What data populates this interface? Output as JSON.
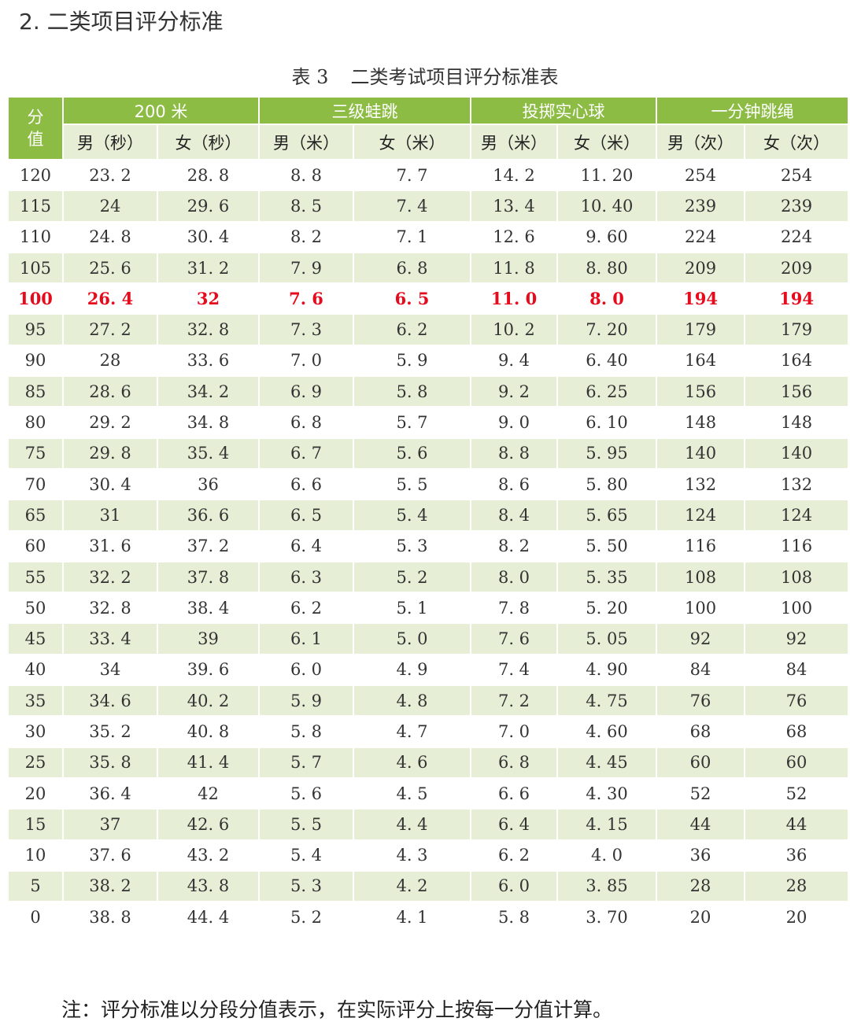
{
  "section_heading": "2. 二类项目评分标准",
  "caption": {
    "label": "表 3",
    "title": "二类考试项目评分标准表"
  },
  "table": {
    "score_header_line1": "分",
    "score_header_line2": "值",
    "groups": [
      "200 米",
      "三级蛙跳",
      "投掷实心球",
      "一分钟跳绳"
    ],
    "sub_headers": [
      "男（秒）",
      "女（秒）",
      "男（米）",
      "女（米）",
      "男（米）",
      "女（米）",
      "男（次）",
      "女（次）"
    ],
    "highlight_score": "100",
    "highlight_color": "#e60b1c",
    "header_color": "#8cbc43",
    "stripe_color": "#e6efd6",
    "rows": [
      [
        "120",
        "23. 2",
        "28. 8",
        "8. 8",
        "7. 7",
        "14. 2",
        "11. 20",
        "254",
        "254"
      ],
      [
        "115",
        "24",
        "29. 6",
        "8. 5",
        "7. 4",
        "13. 4",
        "10. 40",
        "239",
        "239"
      ],
      [
        "110",
        "24. 8",
        "30. 4",
        "8. 2",
        "7. 1",
        "12. 6",
        "9. 60",
        "224",
        "224"
      ],
      [
        "105",
        "25. 6",
        "31. 2",
        "7. 9",
        "6. 8",
        "11. 8",
        "8. 80",
        "209",
        "209"
      ],
      [
        "100",
        "26. 4",
        "32",
        "7. 6",
        "6. 5",
        "11. 0",
        "8. 0",
        "194",
        "194"
      ],
      [
        "95",
        "27. 2",
        "32. 8",
        "7. 3",
        "6. 2",
        "10. 2",
        "7. 20",
        "179",
        "179"
      ],
      [
        "90",
        "28",
        "33. 6",
        "7. 0",
        "5. 9",
        "9. 4",
        "6. 40",
        "164",
        "164"
      ],
      [
        "85",
        "28. 6",
        "34. 2",
        "6. 9",
        "5. 8",
        "9. 2",
        "6. 25",
        "156",
        "156"
      ],
      [
        "80",
        "29. 2",
        "34. 8",
        "6. 8",
        "5. 7",
        "9. 0",
        "6. 10",
        "148",
        "148"
      ],
      [
        "75",
        "29. 8",
        "35. 4",
        "6. 7",
        "5. 6",
        "8. 8",
        "5. 95",
        "140",
        "140"
      ],
      [
        "70",
        "30. 4",
        "36",
        "6. 6",
        "5. 5",
        "8. 6",
        "5. 80",
        "132",
        "132"
      ],
      [
        "65",
        "31",
        "36. 6",
        "6. 5",
        "5. 4",
        "8. 4",
        "5. 65",
        "124",
        "124"
      ],
      [
        "60",
        "31. 6",
        "37. 2",
        "6. 4",
        "5. 3",
        "8. 2",
        "5. 50",
        "116",
        "116"
      ],
      [
        "55",
        "32. 2",
        "37. 8",
        "6. 3",
        "5. 2",
        "8. 0",
        "5. 35",
        "108",
        "108"
      ],
      [
        "50",
        "32. 8",
        "38. 4",
        "6. 2",
        "5. 1",
        "7. 8",
        "5. 20",
        "100",
        "100"
      ],
      [
        "45",
        "33. 4",
        "39",
        "6. 1",
        "5. 0",
        "7. 6",
        "5. 05",
        "92",
        "92"
      ],
      [
        "40",
        "34",
        "39. 6",
        "6. 0",
        "4. 9",
        "7. 4",
        "4. 90",
        "84",
        "84"
      ],
      [
        "35",
        "34. 6",
        "40. 2",
        "5. 9",
        "4. 8",
        "7. 2",
        "4. 75",
        "76",
        "76"
      ],
      [
        "30",
        "35. 2",
        "40. 8",
        "5. 8",
        "4. 7",
        "7. 0",
        "4. 60",
        "68",
        "68"
      ],
      [
        "25",
        "35. 8",
        "41. 4",
        "5. 7",
        "4. 6",
        "6. 8",
        "4. 45",
        "60",
        "60"
      ],
      [
        "20",
        "36. 4",
        "42",
        "5. 6",
        "4. 5",
        "6. 6",
        "4. 30",
        "52",
        "52"
      ],
      [
        "15",
        "37",
        "42. 6",
        "5. 5",
        "4. 4",
        "6. 4",
        "4. 15",
        "44",
        "44"
      ],
      [
        "10",
        "37. 6",
        "43. 2",
        "5. 4",
        "4. 3",
        "6. 2",
        "4. 0",
        "36",
        "36"
      ],
      [
        "5",
        "38. 2",
        "43. 8",
        "5. 3",
        "4. 2",
        "6. 0",
        "3. 85",
        "28",
        "28"
      ],
      [
        "0",
        "38. 8",
        "44. 4",
        "5. 2",
        "4. 1",
        "5. 8",
        "3. 70",
        "20",
        "20"
      ]
    ]
  },
  "footnote": "注：评分标准以分段分值表示，在实际评分上按每一分值计算。"
}
